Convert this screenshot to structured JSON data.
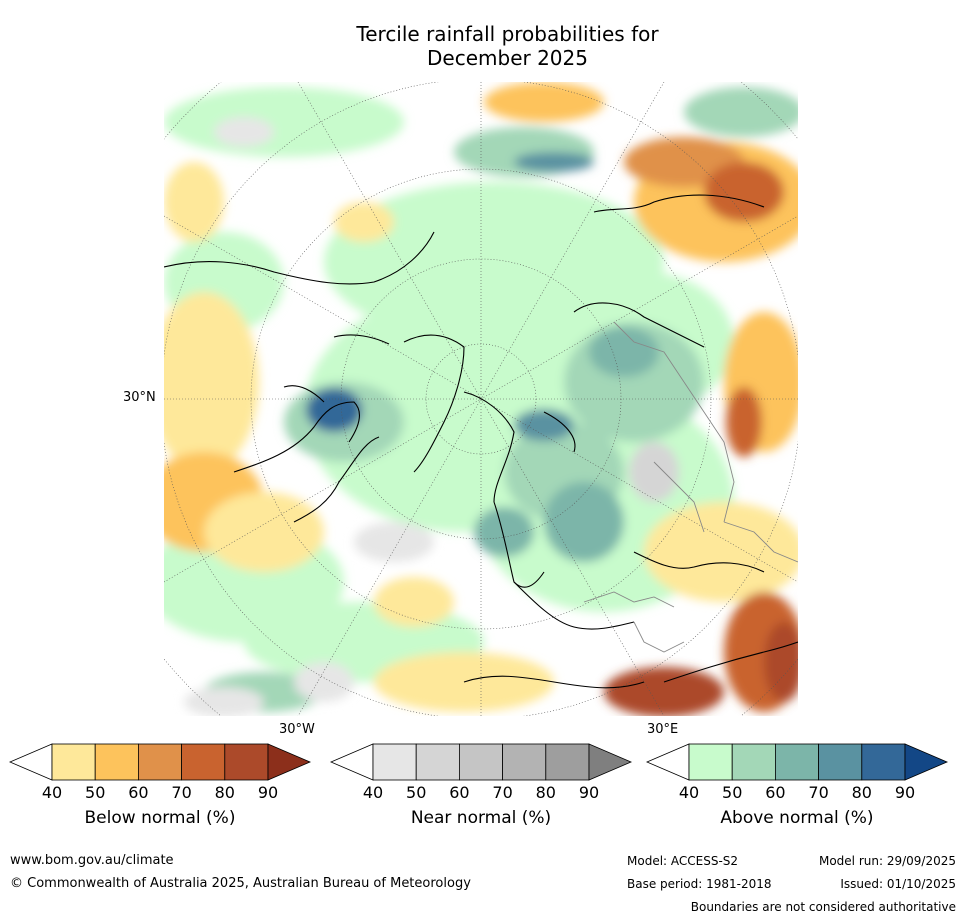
{
  "title": {
    "line1": "Tercile rainfall probabilities for",
    "line2": "December 2025"
  },
  "map": {
    "lat_label": "30°N",
    "lon_label_left": "30°W",
    "lon_label_right": "30°E"
  },
  "colorbars": [
    {
      "id": "below",
      "label": "Below normal (%)",
      "ticks": [
        "40",
        "50",
        "60",
        "70",
        "80",
        "90"
      ],
      "colors": [
        "#ffffff",
        "#fee89a",
        "#fdc35c",
        "#e0914a",
        "#c9632f",
        "#ac4a2a",
        "#8c2f1b"
      ]
    },
    {
      "id": "near",
      "label": "Near normal (%)",
      "ticks": [
        "40",
        "50",
        "60",
        "70",
        "80",
        "90"
      ],
      "colors": [
        "#ffffff",
        "#e6e6e6",
        "#d5d5d5",
        "#c5c5c5",
        "#b3b3b3",
        "#9e9e9e",
        "#7f7f7f"
      ]
    },
    {
      "id": "above",
      "label": "Above normal (%)",
      "ticks": [
        "40",
        "50",
        "60",
        "70",
        "80",
        "90"
      ],
      "colors": [
        "#ffffff",
        "#c8fbcc",
        "#a3d7b7",
        "#7cb5a9",
        "#5a92a1",
        "#336898",
        "#134786"
      ]
    }
  ],
  "footer": {
    "website": "www.bom.gov.au/climate",
    "copyright": "© Commonwealth of Australia 2025, Australian Bureau of Meteorology",
    "model": "Model: ACCESS-S2",
    "base_period": "Base period: 1981-2018",
    "model_run": "Model run: 29/09/2025",
    "issued": "Issued: 01/10/2025",
    "disclaimer": "Boundaries are not considered authoritative"
  }
}
